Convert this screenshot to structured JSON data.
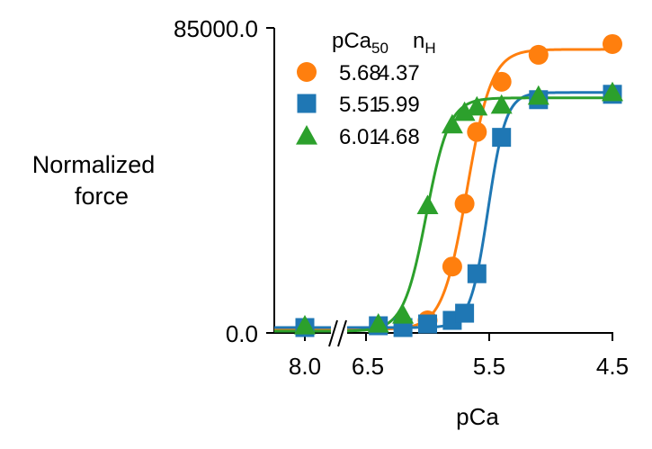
{
  "chart_data": {
    "type": "scatter",
    "xlabel": "pCa",
    "ylabel_line1": "Normalized",
    "ylabel_line2": "force",
    "ylim": [
      0,
      85000
    ],
    "ytick_labels": [
      "0.0",
      "85000.0"
    ],
    "xticks": [
      {
        "label": "8.0"
      },
      {
        "label": "6.5"
      },
      {
        "label": "5.5"
      },
      {
        "label": "4.5"
      }
    ],
    "x_axis_break": "between 8.0 and 6.5",
    "legend": {
      "header_pca": "pCa",
      "header_pca_sub": "50",
      "header_nh": "n",
      "header_nh_sub": "H",
      "placement": "top-left"
    },
    "series": [
      {
        "pca50": "5.68",
        "nh": "4.37",
        "color": "#ff7f0e",
        "marker": "circle",
        "fit": {
          "pca50": 5.68,
          "nh": 4.37,
          "top": 79000,
          "bottom": 1000
        },
        "points": [
          {
            "x": 6.0,
            "y": 3500
          },
          {
            "x": 5.8,
            "y": 18500
          },
          {
            "x": 5.7,
            "y": 36000
          },
          {
            "x": 5.6,
            "y": 56000
          },
          {
            "x": 5.4,
            "y": 70000
          },
          {
            "x": 5.1,
            "y": 77500
          },
          {
            "x": 4.5,
            "y": 80500
          }
        ]
      },
      {
        "pca50": "5.51",
        "nh": "5.99",
        "color": "#1f77b4",
        "marker": "square",
        "fit": {
          "pca50": 5.51,
          "nh": 5.99,
          "top": 67000,
          "bottom": 1500
        },
        "points": [
          {
            "x": 8.0,
            "y": 1500
          },
          {
            "x": 6.4,
            "y": 2000
          },
          {
            "x": 6.2,
            "y": 1500
          },
          {
            "x": 6.0,
            "y": 2500
          },
          {
            "x": 5.8,
            "y": 3500
          },
          {
            "x": 5.7,
            "y": 5500
          },
          {
            "x": 5.6,
            "y": 16500
          },
          {
            "x": 5.4,
            "y": 54500
          },
          {
            "x": 5.1,
            "y": 65000
          },
          {
            "x": 4.5,
            "y": 66500
          }
        ]
      },
      {
        "pca50": "6.01",
        "nh": "4.68",
        "color": "#2ca02c",
        "marker": "triangle",
        "fit": {
          "pca50": 6.01,
          "nh": 4.68,
          "top": 65500,
          "bottom": 500
        },
        "points": [
          {
            "x": 8.0,
            "y": 2000
          },
          {
            "x": 6.4,
            "y": 2500
          },
          {
            "x": 6.2,
            "y": 5000
          },
          {
            "x": 6.0,
            "y": 35500
          },
          {
            "x": 5.8,
            "y": 58000
          },
          {
            "x": 5.7,
            "y": 61500
          },
          {
            "x": 5.6,
            "y": 63000
          },
          {
            "x": 5.4,
            "y": 63500
          },
          {
            "x": 5.1,
            "y": 66000
          },
          {
            "x": 4.5,
            "y": 67000
          }
        ]
      }
    ]
  }
}
